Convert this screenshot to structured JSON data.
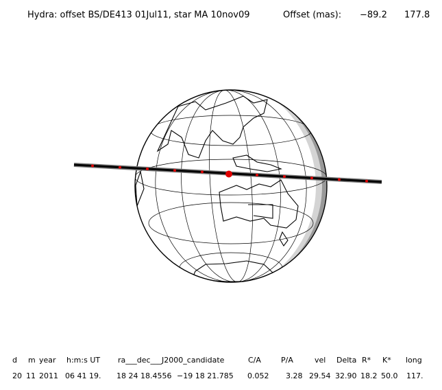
{
  "header": {
    "title": "Hydra: offset BS/DE413 01Jul11, star MA 10nov09",
    "offset_label": "Offset (mas):",
    "offset": [
      "−89.2",
      "177.8"
    ]
  },
  "table": {
    "columns": [
      "d",
      "m",
      "year",
      "h:m:s UT",
      "ra___dec___J2000_candidate",
      "C/A",
      "P/A",
      "vel",
      "Delta",
      "R*",
      "K*",
      "long"
    ],
    "rows": [
      [
        "20",
        "11",
        "2011",
        "06 41 19.",
        "18 24 18.4556",
        "−19 18 21.785",
        "0.052",
        "3.28",
        "29.54",
        "32.90",
        "18.2",
        "50.0",
        "117."
      ]
    ]
  }
}
